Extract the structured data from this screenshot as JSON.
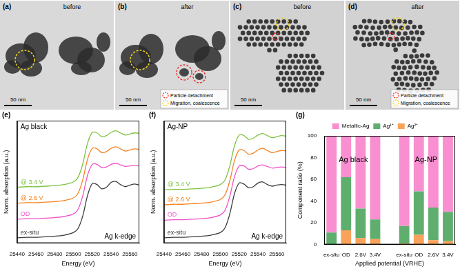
{
  "image_panels": [
    {
      "panel_label": "(a)",
      "caption": "before",
      "scale_bar": "50 nm"
    },
    {
      "panel_label": "(b)",
      "caption": "after",
      "scale_bar": "50 nm",
      "circle_key": [
        {
          "name": "Particle detachment",
          "color": "#e53935"
        },
        {
          "name": "Migration, coalescence",
          "color": "#f2d21b"
        }
      ]
    },
    {
      "panel_label": "(c)",
      "caption": "before",
      "scale_bar": "50 nm"
    },
    {
      "panel_label": "(d)",
      "caption": "after",
      "scale_bar": "50 nm",
      "circle_key": [
        {
          "name": "Particle detachment",
          "color": "#e53935"
        },
        {
          "name": "Migration, coalescence",
          "color": "#f2d21b"
        }
      ]
    }
  ],
  "chart_data": [
    {
      "type": "line",
      "panel_label": "(e)",
      "annotations": [
        "Ag black",
        "Ag k-edge"
      ],
      "x_label": "Energy (eV)",
      "y_label": "Norm. absorption (a.u.)",
      "x": [
        25440,
        25450,
        25460,
        25470,
        25480,
        25490,
        25500,
        25505,
        25510,
        25515,
        25520,
        25525,
        25530,
        25535,
        25540,
        25545,
        25550,
        25555,
        25560,
        25565,
        25570
      ],
      "series": [
        {
          "name": "ex-situ",
          "color": "#3a3a3a",
          "values": [
            0.0,
            0.01,
            0.01,
            0.02,
            0.03,
            0.05,
            0.1,
            0.18,
            0.42,
            0.8,
            1.02,
            1.0,
            0.92,
            0.95,
            1.04,
            1.06,
            1.0,
            0.96,
            0.99,
            1.01,
            0.99
          ]
        },
        {
          "name": "OD",
          "color": "#f050c8",
          "values": [
            0.35,
            0.36,
            0.36,
            0.37,
            0.38,
            0.4,
            0.45,
            0.54,
            0.8,
            1.18,
            1.38,
            1.38,
            1.32,
            1.33,
            1.38,
            1.4,
            1.37,
            1.34,
            1.35,
            1.36,
            1.35
          ]
        },
        {
          "name": "@ 2.6 V",
          "color": "#f58220",
          "values": [
            0.65,
            0.66,
            0.66,
            0.67,
            0.68,
            0.7,
            0.75,
            0.84,
            1.1,
            1.48,
            1.68,
            1.67,
            1.6,
            1.62,
            1.68,
            1.71,
            1.67,
            1.63,
            1.65,
            1.67,
            1.66
          ]
        },
        {
          "name": "@ 3.4 V",
          "color": "#7dc242",
          "values": [
            0.95,
            0.96,
            0.96,
            0.97,
            0.98,
            1.0,
            1.05,
            1.14,
            1.4,
            1.78,
            1.98,
            1.97,
            1.9,
            1.92,
            1.98,
            2.01,
            1.97,
            1.93,
            1.95,
            1.97,
            1.96
          ]
        }
      ],
      "xlim": [
        25440,
        25570
      ],
      "xticks": [
        25440,
        25460,
        25480,
        25500,
        25520,
        25540,
        25560
      ],
      "ylim": [
        -0.1,
        2.2
      ],
      "tick_labels": "x",
      "grid": false
    },
    {
      "type": "line",
      "panel_label": "(f)",
      "annotations": [
        "Ag-NP",
        "Ag k-edge"
      ],
      "x_label": "Energy (eV)",
      "y_label": "Norm. absorption (a.u.)",
      "x": [
        25440,
        25450,
        25460,
        25470,
        25480,
        25490,
        25500,
        25505,
        25510,
        25515,
        25520,
        25525,
        25530,
        25535,
        25540,
        25545,
        25550,
        25555,
        25560,
        25565,
        25570
      ],
      "series": [
        {
          "name": "ex-situ",
          "color": "#3a3a3a",
          "values": [
            0.0,
            0.01,
            0.01,
            0.02,
            0.03,
            0.05,
            0.1,
            0.19,
            0.45,
            0.83,
            1.03,
            1.01,
            0.94,
            0.96,
            1.03,
            1.05,
            1.0,
            0.97,
            0.99,
            1.0,
            0.99
          ]
        },
        {
          "name": "OD",
          "color": "#f050c8",
          "values": [
            0.33,
            0.34,
            0.34,
            0.35,
            0.36,
            0.38,
            0.43,
            0.52,
            0.78,
            1.15,
            1.35,
            1.35,
            1.29,
            1.3,
            1.35,
            1.37,
            1.34,
            1.31,
            1.32,
            1.33,
            1.32
          ]
        },
        {
          "name": "@ 2.6 V",
          "color": "#f58220",
          "values": [
            0.62,
            0.63,
            0.63,
            0.64,
            0.65,
            0.67,
            0.72,
            0.81,
            1.07,
            1.45,
            1.65,
            1.64,
            1.57,
            1.59,
            1.65,
            1.68,
            1.64,
            1.6,
            1.62,
            1.64,
            1.63
          ]
        },
        {
          "name": "@ 3.4 V",
          "color": "#7dc242",
          "values": [
            0.9,
            0.91,
            0.91,
            0.92,
            0.93,
            0.95,
            1.0,
            1.09,
            1.35,
            1.73,
            1.93,
            1.92,
            1.85,
            1.87,
            1.93,
            1.96,
            1.92,
            1.88,
            1.9,
            1.92,
            1.91
          ]
        }
      ],
      "xlim": [
        25440,
        25570
      ],
      "xticks": [
        25440,
        25460,
        25480,
        25500,
        25520,
        25540,
        25560
      ],
      "ylim": [
        -0.1,
        2.2
      ],
      "tick_labels": "x",
      "grid": false
    },
    {
      "type": "bar",
      "panel_label": "(g)",
      "stacked": true,
      "annotations": [
        "Ag black",
        "Ag-NP"
      ],
      "x_label": "Applied potential (VRHE)",
      "y_label": "Component ratio (%)",
      "categories": [
        "ex-situ",
        "OD",
        "2.6V",
        "3.4V",
        null,
        "ex-situ",
        "OD",
        "2.6V",
        "3.4V"
      ],
      "series": [
        {
          "name": "Metallic-Ag",
          "color": "#f98fd0",
          "values": [
            89,
            38,
            67,
            77,
            null,
            83,
            51,
            66,
            70
          ]
        },
        {
          "name": "Ag¹⁺",
          "color": "#5fae6e",
          "values": [
            11,
            49,
            27,
            18,
            null,
            16,
            40,
            30,
            27
          ]
        },
        {
          "name": "Ag²⁺",
          "color": "#f9a25a",
          "values": [
            0,
            13,
            6,
            5,
            null,
            1,
            9,
            4,
            3
          ]
        }
      ],
      "ylim": [
        0,
        100
      ],
      "yticks": [
        0,
        20,
        40,
        60,
        80,
        100
      ],
      "legend": "top",
      "grid": false
    }
  ]
}
